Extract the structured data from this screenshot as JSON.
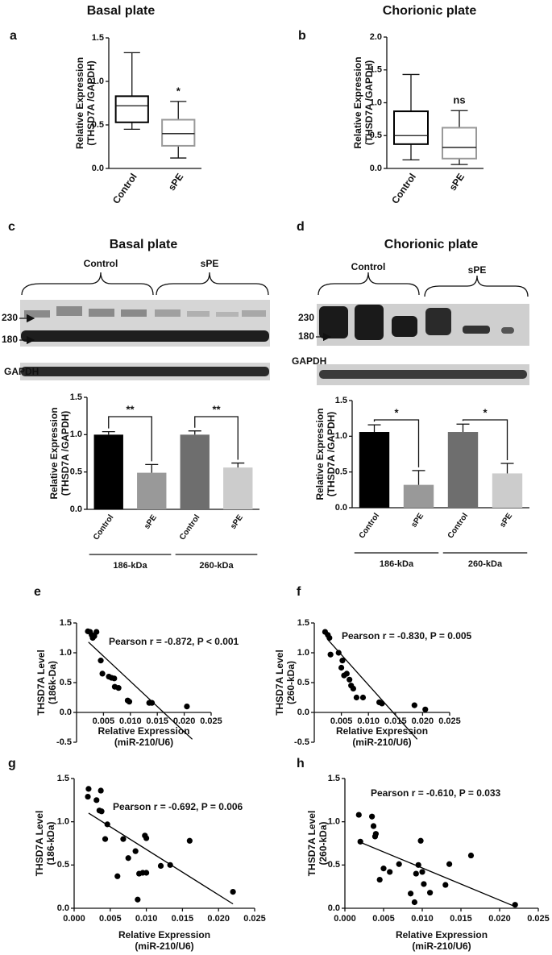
{
  "chart_data": [
    {
      "type": "box",
      "panel": "a",
      "title": "Basal plate",
      "ylabel": [
        "Relative Expression",
        "(THSD7A /GAPDH)"
      ],
      "categories": [
        "Control",
        "sPE"
      ],
      "boxes": [
        {
          "min": 0.45,
          "q1": 0.53,
          "median": 0.72,
          "q3": 0.83,
          "max": 1.33,
          "color": "#000000"
        },
        {
          "min": 0.12,
          "q1": 0.26,
          "median": 0.4,
          "q3": 0.56,
          "max": 0.77,
          "color": "#999999"
        }
      ],
      "annotations": [
        null,
        "*"
      ],
      "ylim": [
        0,
        1.5
      ],
      "yticks": [
        {
          "value": 0,
          "label": "0.0"
        },
        0.5,
        {
          "value": 1,
          "label": "1.0"
        },
        1.5
      ]
    },
    {
      "type": "box",
      "panel": "b",
      "title": "Chorionic plate",
      "ylabel": [
        "Relative Expression",
        "(THSD7A /GAPDH)"
      ],
      "categories": [
        "Control",
        "sPE"
      ],
      "boxes": [
        {
          "min": 0.13,
          "q1": 0.37,
          "median": 0.5,
          "q3": 0.87,
          "max": 1.43,
          "color": "#000000"
        },
        {
          "min": 0.06,
          "q1": 0.15,
          "median": 0.32,
          "q3": 0.62,
          "max": 0.88,
          "color": "#999999"
        }
      ],
      "annotations": [
        null,
        "ns"
      ],
      "ylim": [
        0,
        2
      ],
      "yticks": [
        {
          "value": 0,
          "label": "0.0"
        },
        0.5,
        {
          "value": 1,
          "label": "1.0"
        },
        1.5,
        {
          "value": 2,
          "label": "2.0"
        }
      ]
    },
    {
      "type": "bar",
      "panel": "c",
      "title": "Basal plate",
      "blot": {
        "groups": [
          "Control",
          "sPE"
        ],
        "markers": [
          "230",
          "180"
        ],
        "loading": "GAPDH"
      },
      "ylabel": [
        "Relative Expression",
        "(THSD7A /GAPDH)"
      ],
      "categories": [
        "Control",
        "sPE",
        "Control",
        "sPE"
      ],
      "values": [
        1.0,
        0.49,
        1.0,
        0.56
      ],
      "errors": [
        0.04,
        0.11,
        0.05,
        0.06
      ],
      "colors": [
        "#000000",
        "#999999",
        "#6e6e6e",
        "#cccccc"
      ],
      "groups": [
        "186-kDa",
        "260-kDa"
      ],
      "significance": [
        "**",
        "**"
      ],
      "ylim": [
        0,
        1.5
      ],
      "yticks": [
        {
          "value": 0,
          "label": "0.0"
        },
        0.5,
        {
          "value": 1,
          "label": "1.0"
        },
        1.5
      ]
    },
    {
      "type": "bar",
      "panel": "d",
      "title": "Chorionic plate",
      "blot": {
        "groups": [
          "Control",
          "sPE"
        ],
        "markers": [
          "230",
          "180"
        ],
        "loading": "GAPDH"
      },
      "ylabel": [
        "Relative Expression",
        "(THSD7A /GAPDH)"
      ],
      "categories": [
        "Control",
        "sPE",
        "Control",
        "sPE"
      ],
      "values": [
        1.06,
        0.32,
        1.06,
        0.48
      ],
      "errors": [
        0.1,
        0.2,
        0.11,
        0.14
      ],
      "colors": [
        "#000000",
        "#999999",
        "#6e6e6e",
        "#cccccc"
      ],
      "groups": [
        "186-kDa",
        "260-kDa"
      ],
      "significance": [
        "*",
        "*"
      ],
      "ylim": [
        0,
        1.5
      ],
      "yticks": [
        {
          "value": 0,
          "label": "0.0"
        },
        0.5,
        {
          "value": 1,
          "label": "1.0"
        },
        1.5
      ]
    },
    {
      "type": "scatter",
      "panel": "e",
      "annotation": "Pearson r = -0.872, P < 0.001",
      "xlabel": [
        "Relative Expression",
        "(miR-210/U6)"
      ],
      "ylabel": [
        "THSD7A Level",
        "(186k-Da)"
      ],
      "color": "#000000",
      "x": [
        0.0021,
        0.0025,
        0.0028,
        0.003,
        0.0033,
        0.0037,
        0.0045,
        0.0048,
        0.006,
        0.0065,
        0.007,
        0.0071,
        0.0078,
        0.0095,
        0.0098,
        0.0135,
        0.014,
        0.0205
      ],
      "values": [
        1.36,
        1.35,
        1.3,
        1.25,
        1.28,
        1.35,
        0.87,
        0.65,
        0.6,
        0.58,
        0.57,
        0.43,
        0.41,
        0.2,
        0.18,
        0.16,
        0.16,
        0.1
      ],
      "fit": {
        "x": [
          0.0022,
          0.0215
        ],
        "values": [
          1.18,
          -0.45
        ]
      },
      "xlim": [
        0,
        0.025
      ],
      "xticks": [
        0.005,
        {
          "value": 0.01,
          "label": "0.010"
        },
        0.015,
        {
          "value": 0.02,
          "label": "0.020"
        },
        0.025
      ],
      "ylim": [
        -0.5,
        1.5
      ],
      "yticks": [
        -0.5,
        {
          "value": 0,
          "label": "0.0"
        },
        0.5,
        {
          "value": 1,
          "label": "1.0"
        },
        1.5
      ]
    },
    {
      "type": "scatter",
      "panel": "f",
      "annotation": "Pearson r = -0.830, P = 0.005",
      "xlabel": [
        "Relative Expression",
        "(miR-210/U6)"
      ],
      "ylabel": [
        "THSD7A Level",
        "(260-kDa)"
      ],
      "color": "#000000",
      "x": [
        0.002,
        0.0025,
        0.0028,
        0.003,
        0.0045,
        0.0052,
        0.005,
        0.0055,
        0.006,
        0.0065,
        0.0068,
        0.0072,
        0.0078,
        0.009,
        0.012,
        0.0125,
        0.0185,
        0.0205
      ],
      "values": [
        1.35,
        1.3,
        1.25,
        0.97,
        1.0,
        0.87,
        0.75,
        0.62,
        0.65,
        0.55,
        0.45,
        0.4,
        0.25,
        0.25,
        0.17,
        0.15,
        0.12,
        0.05
      ],
      "fit": {
        "x": [
          0.0025,
          0.019
        ],
        "values": [
          1.22,
          -0.45
        ]
      },
      "xlim": [
        0,
        0.025
      ],
      "xticks": [
        0.005,
        {
          "value": 0.01,
          "label": "0.010"
        },
        0.015,
        {
          "value": 0.02,
          "label": "0.020"
        },
        0.025
      ],
      "ylim": [
        -0.5,
        1.5
      ],
      "yticks": [
        -0.5,
        {
          "value": 0,
          "label": "0.0"
        },
        0.5,
        {
          "value": 1,
          "label": "1.0"
        },
        1.5
      ]
    },
    {
      "type": "scatter",
      "panel": "g",
      "annotation": "Pearson r = -0.692, P = 0.006",
      "xlabel": [
        "Relative Expression",
        "(miR-210/U6)"
      ],
      "ylabel": [
        "THSD7A Level",
        "(186-kDa)"
      ],
      "color": "#000000",
      "x": [
        0.0019,
        0.002,
        0.0031,
        0.0035,
        0.0037,
        0.0038,
        0.0043,
        0.0046,
        0.006,
        0.0068,
        0.0075,
        0.0085,
        0.0088,
        0.009,
        0.0095,
        0.0098,
        0.01,
        0.01,
        0.012,
        0.0133,
        0.016,
        0.022
      ],
      "values": [
        1.29,
        1.38,
        1.25,
        1.13,
        1.36,
        1.12,
        0.8,
        0.97,
        0.37,
        0.8,
        0.58,
        0.66,
        0.1,
        0.4,
        0.41,
        0.84,
        0.41,
        0.81,
        0.49,
        0.5,
        0.78,
        0.19
      ],
      "fit": {
        "x": [
          0.002,
          0.022
        ],
        "values": [
          1.1,
          0.05
        ]
      },
      "xlim": [
        0,
        0.025
      ],
      "xticks": [
        {
          "value": 0,
          "label": "0.000"
        },
        0.005,
        {
          "value": 0.01,
          "label": "0.010"
        },
        0.015,
        {
          "value": 0.02,
          "label": "0.020"
        },
        0.025
      ],
      "ylim": [
        0,
        1.5
      ],
      "yticks": [
        {
          "value": 0,
          "label": "0.0"
        },
        0.5,
        {
          "value": 1,
          "label": "1.0"
        },
        1.5
      ]
    },
    {
      "type": "scatter",
      "panel": "h",
      "annotation": "Pearson r = -0.610, P = 0.033",
      "xlabel": [
        "Relative Expression",
        "(miR-210/U6)"
      ],
      "ylabel": [
        "THSD7A Level",
        "(260-kDa)"
      ],
      "color": "#000000",
      "x": [
        0.0018,
        0.002,
        0.0035,
        0.0037,
        0.0039,
        0.004,
        0.0045,
        0.005,
        0.0058,
        0.007,
        0.0085,
        0.009,
        0.0092,
        0.0095,
        0.0098,
        0.01,
        0.0102,
        0.011,
        0.013,
        0.0135,
        0.0163,
        0.022
      ],
      "values": [
        1.08,
        0.77,
        1.06,
        0.95,
        0.83,
        0.86,
        0.33,
        0.46,
        0.42,
        0.51,
        0.17,
        0.07,
        0.4,
        0.5,
        0.78,
        0.42,
        0.28,
        0.18,
        0.27,
        0.51,
        0.61,
        0.04
      ],
      "fit": {
        "x": [
          0.0018,
          0.022
        ],
        "values": [
          0.77,
          0.02
        ]
      },
      "xlim": [
        0,
        0.025
      ],
      "xticks": [
        {
          "value": 0,
          "label": "0.000"
        },
        0.005,
        {
          "value": 0.01,
          "label": "0.010"
        },
        0.015,
        {
          "value": 0.02,
          "label": "0.020"
        },
        0.025
      ],
      "ylim": [
        0,
        1.5
      ],
      "yticks": [
        {
          "value": 0,
          "label": "0.0"
        },
        0.5,
        {
          "value": 1,
          "label": "1.0"
        },
        1.5
      ]
    }
  ]
}
